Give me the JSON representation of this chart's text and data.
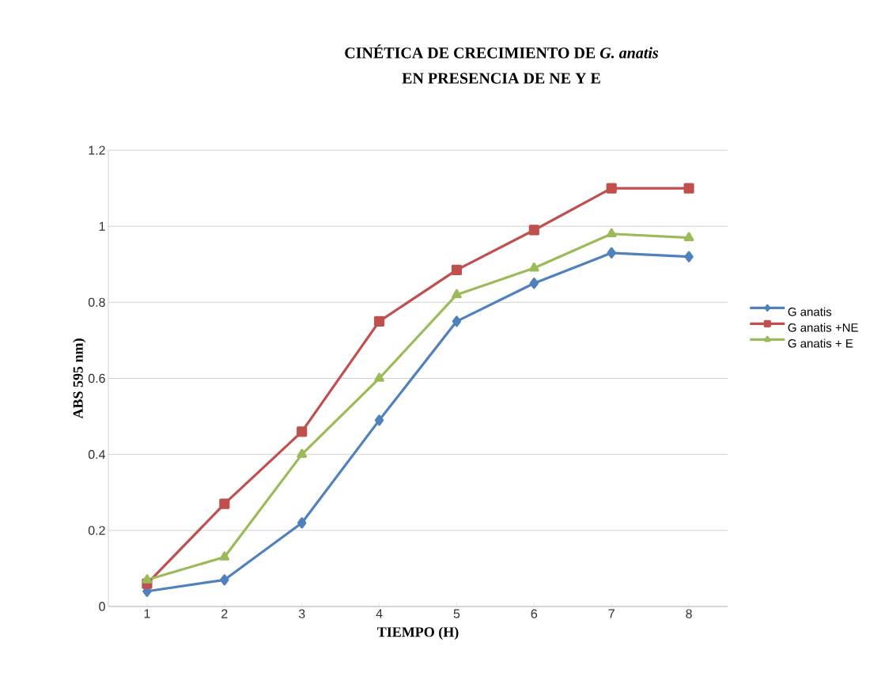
{
  "chart_data": {
    "type": "line",
    "title": "CINÉTICA DE CRECIMIENTO DE *G. anatis*",
    "subtitle": "EN PRESENCIA DE NE Y E",
    "xlabel": "TIEMPO (H)",
    "ylabel": "ABS 595 nm)",
    "categories": [
      "1",
      "2",
      "3",
      "4",
      "5",
      "6",
      "7",
      "8"
    ],
    "series": [
      {
        "name": "G anatis",
        "color": "#4f81bd",
        "marker": "diamond",
        "values": [
          0.04,
          0.07,
          0.22,
          0.49,
          0.75,
          0.85,
          0.93,
          0.92
        ]
      },
      {
        "name": "G anatis +NE",
        "color": "#c0504d",
        "marker": "square",
        "values": [
          0.06,
          0.27,
          0.46,
          0.75,
          0.885,
          0.99,
          1.1,
          1.1
        ]
      },
      {
        "name": "G anatis + E",
        "color": "#9bbb59",
        "marker": "triangle",
        "values": [
          0.07,
          0.13,
          0.4,
          0.6,
          0.82,
          0.89,
          0.98,
          0.97
        ]
      }
    ],
    "ylim": [
      0,
      1.2
    ],
    "yticks": [
      0,
      0.2,
      0.4,
      0.6,
      0.8,
      1,
      1.2
    ],
    "grid": "y",
    "legend": "right",
    "line_style": "solid"
  }
}
